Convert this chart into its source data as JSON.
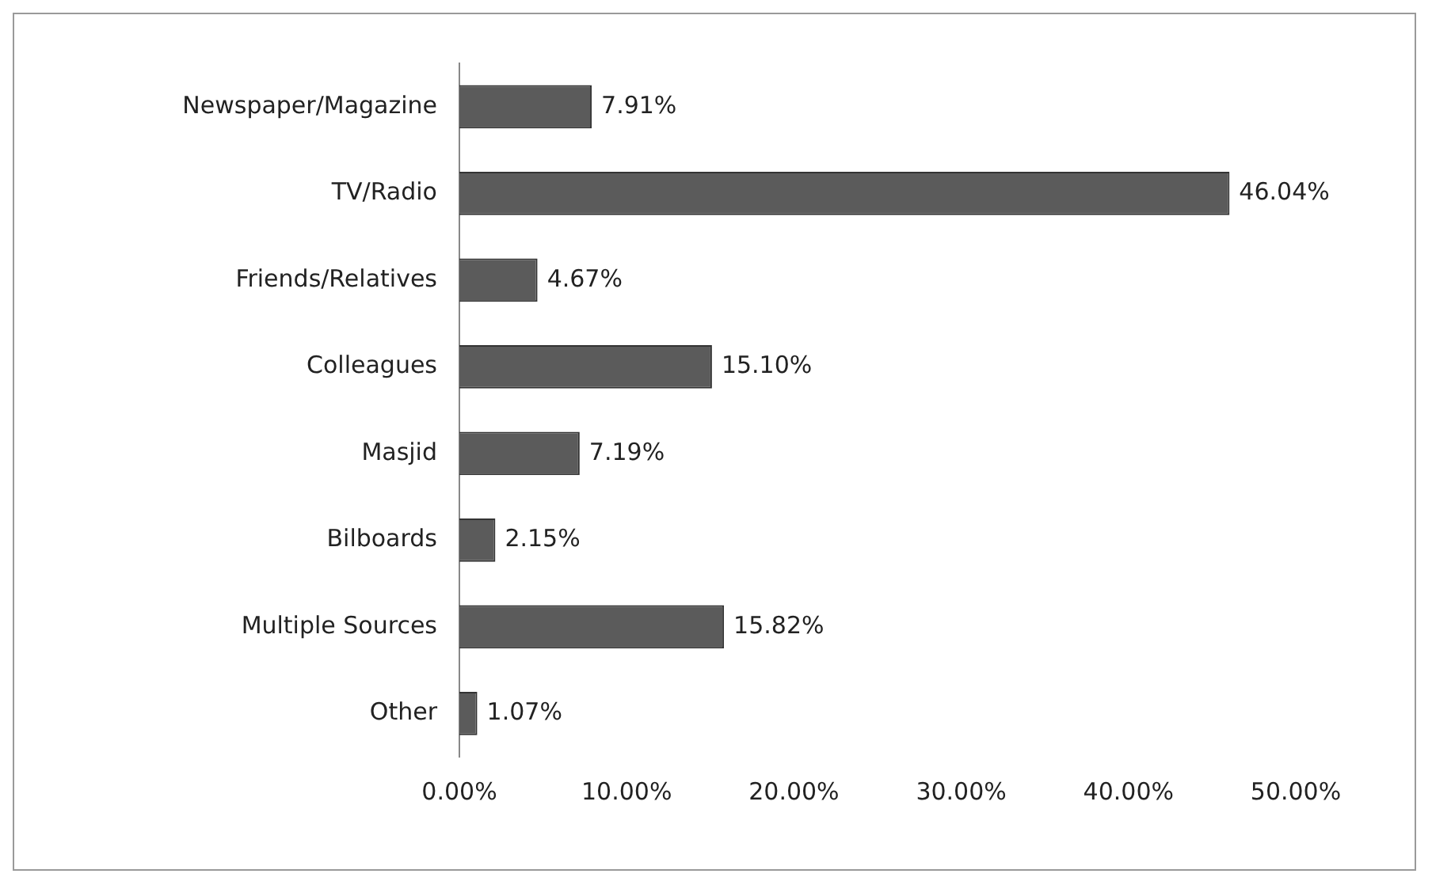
{
  "chart_data": {
    "type": "bar",
    "orientation": "horizontal",
    "categories": [
      "Newspaper/Magazine",
      "TV/Radio",
      "Friends/Relatives",
      "Colleagues",
      "Masjid",
      "Bilboards",
      "Multiple Sources",
      "Other"
    ],
    "values": [
      7.91,
      46.04,
      4.67,
      15.1,
      7.19,
      2.15,
      15.82,
      1.07
    ],
    "value_labels": [
      "7.91%",
      "46.04%",
      "4.67%",
      "15.10%",
      "7.19%",
      "2.15%",
      "15.82%",
      "1.07%"
    ],
    "color": "#5b5b5b",
    "xlim": [
      0,
      50
    ],
    "xticks": [
      {
        "value": 0,
        "label": "0.00%"
      },
      {
        "value": 10,
        "label": "10.00%"
      },
      {
        "value": 20,
        "label": "20.00%"
      },
      {
        "value": 30,
        "label": "30.00%"
      },
      {
        "value": 40,
        "label": "40.00%"
      },
      {
        "value": 50,
        "label": "50.00%"
      }
    ],
    "grid": false,
    "legend": false
  }
}
